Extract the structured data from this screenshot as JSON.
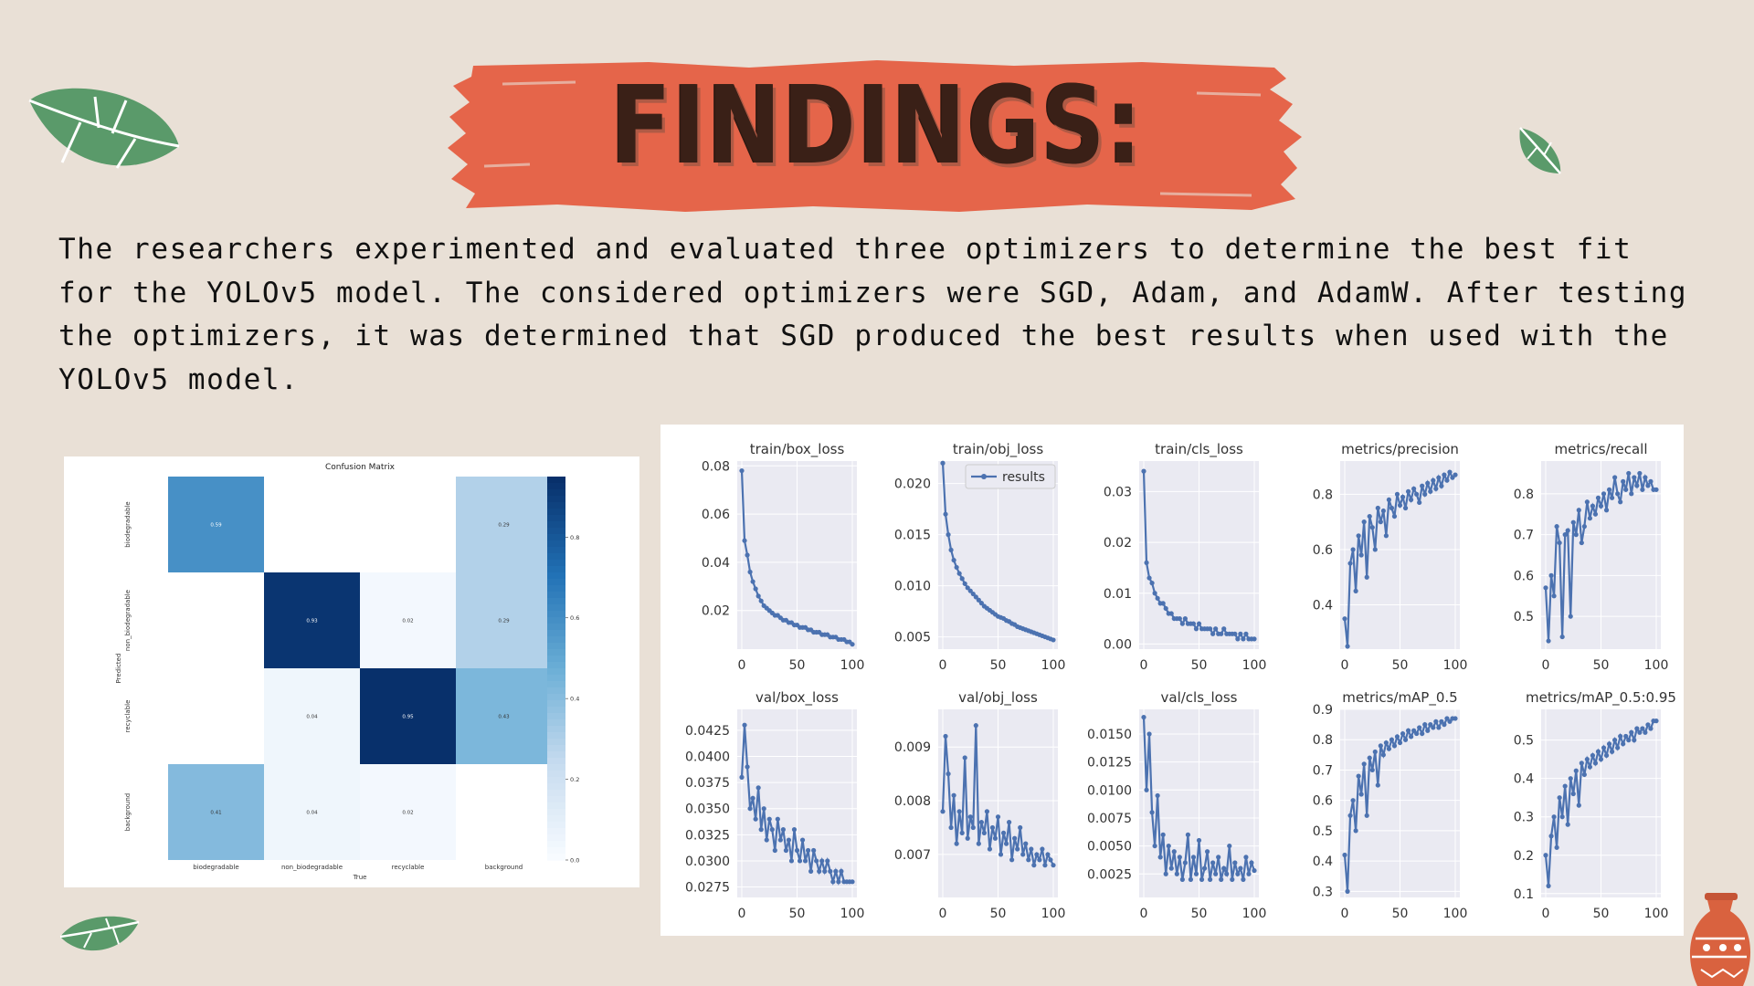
{
  "header": {
    "title": "FINDINGS:"
  },
  "body": {
    "paragraph": "The researchers experimented and evaluated three optimizers to determine the best fit for the YOLOv5 model. The considered optimizers were SGD, Adam, and AdamW. After testing the optimizers, it was determined that SGD produced the best results when used with the YOLOv5 model."
  },
  "colors": {
    "background": "#e9e0d6",
    "brush": "#e5654a",
    "title": "#3a2017",
    "leaf": "#5a9a6a",
    "line": "#4c72b0",
    "plot_bg": "#eaeaf2"
  },
  "chart_data": [
    {
      "type": "heatmap",
      "title": "Confusion Matrix",
      "xlabel": "True",
      "ylabel": "Predicted",
      "x_categories": [
        "biodegradable",
        "non_biodegradable",
        "recyclable",
        "background"
      ],
      "y_categories": [
        "biodegradable",
        "non_biodegradable",
        "recyclable",
        "background"
      ],
      "values": [
        [
          0.59,
          null,
          null,
          0.29
        ],
        [
          null,
          0.93,
          0.02,
          0.29
        ],
        [
          null,
          0.04,
          0.95,
          0.43
        ],
        [
          0.41,
          0.04,
          0.02,
          null
        ]
      ],
      "colorbar_ticks": [
        0.0,
        0.2,
        0.4,
        0.6,
        0.8
      ],
      "vmin": 0,
      "vmax": 0.95
    },
    {
      "type": "line",
      "legend": "results",
      "x": "epoch 0-100",
      "xticks": [
        0,
        50,
        100
      ],
      "panels": [
        {
          "title": "train/box_loss",
          "ylim": [
            0.004,
            0.082
          ],
          "yticks": [
            0.02,
            0.04,
            0.06,
            0.08
          ],
          "yticklabels": [
            "0.02",
            "0.04",
            "0.06",
            "0.08"
          ],
          "values": [
            0.078,
            0.049,
            0.043,
            0.036,
            0.032,
            0.029,
            0.026,
            0.024,
            0.022,
            0.021,
            0.02,
            0.019,
            0.018,
            0.018,
            0.017,
            0.016,
            0.016,
            0.015,
            0.015,
            0.014,
            0.014,
            0.013,
            0.013,
            0.013,
            0.012,
            0.012,
            0.011,
            0.011,
            0.011,
            0.01,
            0.01,
            0.01,
            0.009,
            0.009,
            0.009,
            0.008,
            0.008,
            0.008,
            0.007,
            0.007,
            0.006
          ]
        },
        {
          "title": "train/obj_loss",
          "ylim": [
            0.0038,
            0.0222
          ],
          "yticks": [
            0.005,
            0.01,
            0.015,
            0.02
          ],
          "yticklabels": [
            "0.005",
            "0.010",
            "0.015",
            "0.020"
          ],
          "values": [
            0.022,
            0.017,
            0.015,
            0.0135,
            0.0125,
            0.0118,
            0.0112,
            0.0107,
            0.0102,
            0.0098,
            0.0095,
            0.0092,
            0.0089,
            0.0086,
            0.0083,
            0.008,
            0.0078,
            0.0076,
            0.0074,
            0.0072,
            0.007,
            0.0069,
            0.0068,
            0.0066,
            0.0065,
            0.0063,
            0.0062,
            0.006,
            0.0059,
            0.0058,
            0.0057,
            0.0056,
            0.0055,
            0.0054,
            0.0053,
            0.0052,
            0.0051,
            0.005,
            0.0049,
            0.0048,
            0.0047
          ]
        },
        {
          "title": "train/cls_loss",
          "ylim": [
            -0.001,
            0.036
          ],
          "yticks": [
            0,
            0.01,
            0.02,
            0.03
          ],
          "yticklabels": [
            "0.00",
            "0.01",
            "0.02",
            "0.03"
          ],
          "values": [
            0.034,
            0.016,
            0.013,
            0.012,
            0.01,
            0.009,
            0.008,
            0.008,
            0.007,
            0.006,
            0.006,
            0.005,
            0.005,
            0.005,
            0.004,
            0.005,
            0.004,
            0.004,
            0.004,
            0.003,
            0.004,
            0.003,
            0.003,
            0.003,
            0.003,
            0.002,
            0.003,
            0.002,
            0.002,
            0.003,
            0.002,
            0.002,
            0.002,
            0.002,
            0.001,
            0.002,
            0.001,
            0.002,
            0.001,
            0.001,
            0.001
          ]
        },
        {
          "title": "metrics/precision",
          "ylim": [
            0.24,
            0.92
          ],
          "yticks": [
            0.4,
            0.6,
            0.8
          ],
          "yticklabels": [
            "0.4",
            "0.6",
            "0.8"
          ],
          "values": [
            0.35,
            0.25,
            0.55,
            0.6,
            0.45,
            0.65,
            0.58,
            0.7,
            0.5,
            0.72,
            0.68,
            0.6,
            0.75,
            0.7,
            0.74,
            0.65,
            0.78,
            0.75,
            0.72,
            0.8,
            0.76,
            0.79,
            0.75,
            0.81,
            0.78,
            0.82,
            0.8,
            0.77,
            0.83,
            0.8,
            0.84,
            0.81,
            0.85,
            0.82,
            0.86,
            0.83,
            0.87,
            0.85,
            0.88,
            0.86,
            0.87
          ]
        },
        {
          "title": "metrics/recall",
          "ylim": [
            0.42,
            0.88
          ],
          "yticks": [
            0.5,
            0.6,
            0.7,
            0.8
          ],
          "yticklabels": [
            "0.5",
            "0.6",
            "0.7",
            "0.8"
          ],
          "values": [
            0.57,
            0.44,
            0.6,
            0.55,
            0.72,
            0.68,
            0.45,
            0.7,
            0.71,
            0.5,
            0.73,
            0.7,
            0.76,
            0.68,
            0.72,
            0.78,
            0.74,
            0.77,
            0.75,
            0.79,
            0.77,
            0.8,
            0.76,
            0.81,
            0.79,
            0.84,
            0.8,
            0.78,
            0.83,
            0.81,
            0.85,
            0.8,
            0.84,
            0.82,
            0.85,
            0.81,
            0.84,
            0.82,
            0.83,
            0.81,
            0.81
          ]
        },
        {
          "title": "val/box_loss",
          "ylim": [
            0.0265,
            0.0445
          ],
          "yticks": [
            0.0275,
            0.03,
            0.0325,
            0.035,
            0.0375,
            0.04,
            0.0425
          ],
          "yticklabels": [
            "0.0275",
            "0.0300",
            "0.0325",
            "0.0350",
            "0.0375",
            "0.0400",
            "0.0425"
          ],
          "values": [
            0.038,
            0.043,
            0.039,
            0.035,
            0.036,
            0.034,
            0.037,
            0.033,
            0.035,
            0.032,
            0.034,
            0.033,
            0.031,
            0.034,
            0.032,
            0.033,
            0.031,
            0.032,
            0.03,
            0.033,
            0.031,
            0.03,
            0.032,
            0.03,
            0.031,
            0.029,
            0.031,
            0.03,
            0.029,
            0.03,
            0.029,
            0.03,
            0.029,
            0.028,
            0.029,
            0.028,
            0.029,
            0.028,
            0.028,
            0.028,
            0.028
          ]
        },
        {
          "title": "val/obj_loss",
          "ylim": [
            0.0062,
            0.0097
          ],
          "yticks": [
            0.007,
            0.008,
            0.009
          ],
          "yticklabels": [
            "0.007",
            "0.008",
            "0.009"
          ],
          "values": [
            0.0078,
            0.0092,
            0.0085,
            0.0075,
            0.0081,
            0.0072,
            0.0078,
            0.0074,
            0.0088,
            0.0073,
            0.0077,
            0.0075,
            0.0094,
            0.0072,
            0.0076,
            0.0074,
            0.0078,
            0.0071,
            0.0075,
            0.0073,
            0.0077,
            0.007,
            0.0074,
            0.0072,
            0.0076,
            0.0069,
            0.0073,
            0.0071,
            0.0075,
            0.007,
            0.0072,
            0.0069,
            0.0071,
            0.0068,
            0.007,
            0.0069,
            0.0071,
            0.0068,
            0.007,
            0.0069,
            0.0068
          ]
        },
        {
          "title": "val/cls_loss",
          "ylim": [
            0.0004,
            0.0172
          ],
          "yticks": [
            0.0025,
            0.005,
            0.0075,
            0.01,
            0.0125,
            0.015
          ],
          "yticklabels": [
            "0.0025",
            "0.0050",
            "0.0075",
            "0.0100",
            "0.0125",
            "0.0150"
          ],
          "values": [
            0.0165,
            0.01,
            0.015,
            0.008,
            0.005,
            0.0095,
            0.004,
            0.006,
            0.0025,
            0.005,
            0.003,
            0.0045,
            0.0025,
            0.004,
            0.002,
            0.0035,
            0.006,
            0.002,
            0.004,
            0.0025,
            0.0055,
            0.002,
            0.003,
            0.0045,
            0.002,
            0.0035,
            0.0025,
            0.004,
            0.002,
            0.003,
            0.0025,
            0.005,
            0.002,
            0.0035,
            0.0025,
            0.003,
            0.002,
            0.004,
            0.0025,
            0.0035,
            0.0028
          ]
        },
        {
          "title": "metrics/mAP_0.5",
          "ylim": [
            0.28,
            0.9
          ],
          "yticks": [
            0.3,
            0.4,
            0.5,
            0.6,
            0.7,
            0.8,
            0.9
          ],
          "yticklabels": [
            "0.3",
            "0.4",
            "0.5",
            "0.6",
            "0.7",
            "0.8",
            "0.9"
          ],
          "values": [
            0.42,
            0.3,
            0.55,
            0.6,
            0.5,
            0.68,
            0.62,
            0.72,
            0.55,
            0.74,
            0.7,
            0.76,
            0.65,
            0.78,
            0.75,
            0.79,
            0.77,
            0.8,
            0.78,
            0.81,
            0.79,
            0.82,
            0.8,
            0.83,
            0.81,
            0.83,
            0.82,
            0.84,
            0.82,
            0.85,
            0.83,
            0.85,
            0.84,
            0.86,
            0.84,
            0.86,
            0.85,
            0.87,
            0.86,
            0.87,
            0.87
          ]
        },
        {
          "title": "metrics/mAP_0.5:0.95",
          "ylim": [
            0.09,
            0.58
          ],
          "yticks": [
            0.1,
            0.2,
            0.3,
            0.4,
            0.5
          ],
          "yticklabels": [
            "0.1",
            "0.2",
            "0.3",
            "0.4",
            "0.5"
          ],
          "values": [
            0.2,
            0.12,
            0.25,
            0.3,
            0.22,
            0.35,
            0.3,
            0.38,
            0.28,
            0.4,
            0.36,
            0.42,
            0.33,
            0.44,
            0.41,
            0.45,
            0.43,
            0.46,
            0.44,
            0.47,
            0.45,
            0.48,
            0.46,
            0.49,
            0.47,
            0.5,
            0.48,
            0.51,
            0.49,
            0.51,
            0.5,
            0.52,
            0.5,
            0.53,
            0.52,
            0.53,
            0.52,
            0.54,
            0.53,
            0.55,
            0.55
          ]
        }
      ]
    }
  ]
}
